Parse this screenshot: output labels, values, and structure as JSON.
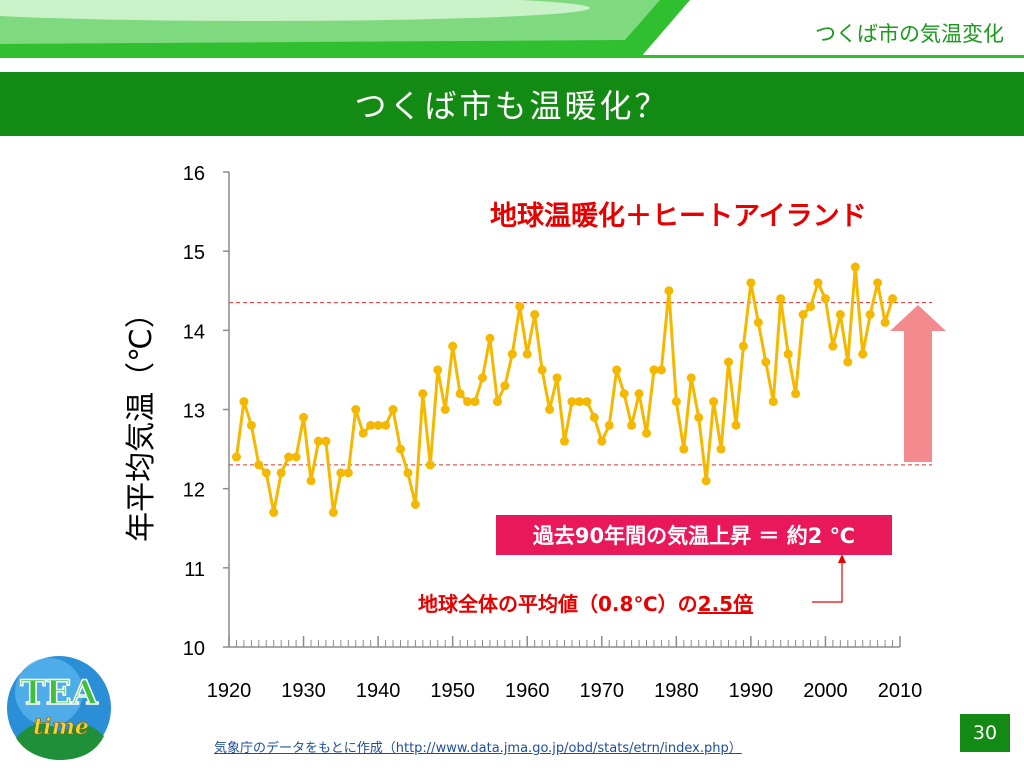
{
  "header": {
    "section_title": "つくば市の気温変化",
    "slide_title": "つくば市も温暖化？"
  },
  "annotations": {
    "heat_label": "地球温暖化＋ヒートアイランド",
    "rise_box": "過去90年間の気温上昇 ＝ 約2 ℃",
    "comparison_prefix": "地球全体の平均値（0.8℃）の",
    "comparison_value": "2.5倍"
  },
  "footer": {
    "source": "気象庁のデータをもとに作成（http://www.data.jma.go.jp/obd/stats/etrn/index.php）",
    "page_number": "30"
  },
  "logo": {
    "line1": "TEA",
    "line2": "time"
  },
  "colors": {
    "title_green": "#138a13",
    "series_orange": "#f5b800",
    "annotation_red": "#e60000",
    "box_pink": "#e8185a",
    "arrow_pink": "#f28a8e"
  },
  "chart_data": {
    "type": "line",
    "ylabel": "年平均気温（℃）",
    "xlabel": "",
    "xlim": [
      1920,
      2010
    ],
    "ylim": [
      10,
      16
    ],
    "x_ticks": [
      1920,
      1930,
      1940,
      1950,
      1960,
      1970,
      1980,
      1990,
      2000,
      2010
    ],
    "y_ticks": [
      10,
      11,
      12,
      13,
      14,
      15,
      16
    ],
    "grid": false,
    "reference_lines": [
      12.3,
      14.35
    ],
    "series": [
      {
        "x": [
          1921,
          1922,
          1923,
          1924,
          1925,
          1926,
          1927,
          1928,
          1929,
          1930,
          1931,
          1932,
          1933,
          1934,
          1935,
          1936,
          1937,
          1938,
          1939,
          1940,
          1941,
          1942,
          1943,
          1944,
          1945,
          1946,
          1947,
          1948,
          1949,
          1950,
          1951,
          1952,
          1953,
          1954,
          1955,
          1956,
          1957,
          1958,
          1959,
          1960,
          1961,
          1962,
          1963,
          1964,
          1965,
          1966,
          1967,
          1968,
          1969,
          1970,
          1971,
          1972,
          1973,
          1974,
          1975,
          1976,
          1977,
          1978,
          1979,
          1980,
          1981,
          1982,
          1983,
          1984,
          1985,
          1986,
          1987,
          1988,
          1989,
          1990,
          1991,
          1992,
          1993,
          1994,
          1995,
          1996,
          1997,
          1998,
          1999,
          2000,
          2001,
          2002,
          2003,
          2004,
          2005,
          2006,
          2007,
          2008,
          2009
        ],
        "values": [
          12.4,
          13.1,
          12.8,
          12.3,
          12.2,
          11.7,
          12.2,
          12.4,
          12.4,
          12.9,
          12.1,
          12.6,
          12.6,
          11.7,
          12.2,
          12.2,
          13.0,
          12.7,
          12.8,
          12.8,
          12.8,
          13.0,
          12.5,
          12.2,
          11.8,
          13.2,
          12.3,
          13.5,
          13.0,
          13.8,
          13.2,
          13.1,
          13.1,
          13.4,
          13.9,
          13.1,
          13.3,
          13.7,
          14.3,
          13.7,
          14.2,
          13.5,
          13.0,
          13.4,
          12.6,
          13.1,
          13.1,
          13.1,
          12.9,
          12.6,
          12.8,
          13.5,
          13.2,
          12.8,
          13.2,
          12.7,
          13.5,
          13.5,
          14.5,
          13.1,
          12.5,
          13.4,
          12.9,
          12.1,
          13.1,
          12.5,
          13.6,
          12.8,
          13.8,
          14.6,
          14.1,
          13.6,
          13.1,
          14.4,
          13.7,
          13.2,
          14.2,
          14.3,
          14.6,
          14.4,
          13.8,
          14.2,
          13.6,
          14.8,
          13.7,
          14.2,
          14.6,
          14.1,
          14.4
        ]
      }
    ]
  }
}
